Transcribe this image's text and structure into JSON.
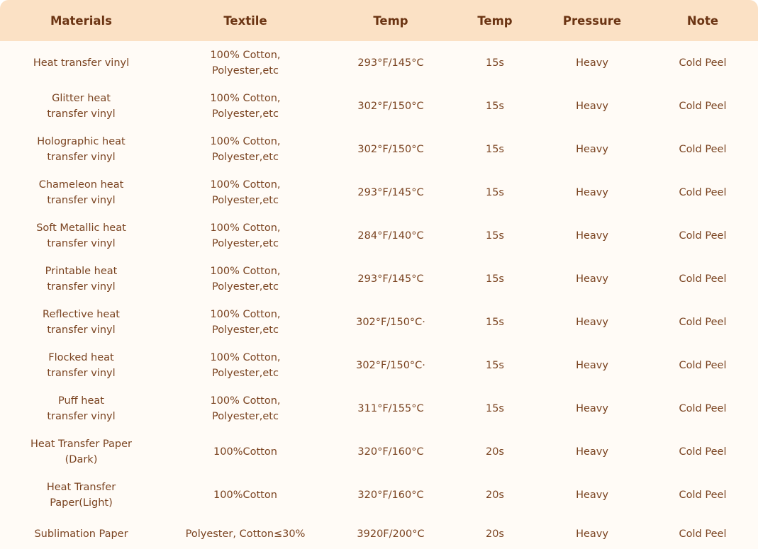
{
  "headers": [
    "Materials",
    "Textile",
    "Temp",
    "Temp",
    "Pressure",
    "Note"
  ],
  "rows": [
    {
      "material": "Heat transfer vinyl",
      "textile": "100% Cotton,\nPolyester,etc",
      "temp": "293°F/145°C",
      "time": "15s",
      "pressure": "Heavy",
      "note": "Cold Peel"
    },
    {
      "material": "Glitter heat\ntransfer vinyl",
      "textile": "100% Cotton,\nPolyester,etc",
      "temp": "302°F/150°C",
      "time": "15s",
      "pressure": "Heavy",
      "note": "Cold Peel"
    },
    {
      "material": "Holographic heat\ntransfer vinyl",
      "textile": "100% Cotton,\nPolyester,etc",
      "temp": "302°F/150°C",
      "time": "15s",
      "pressure": "Heavy",
      "note": "Cold Peel"
    },
    {
      "material": "Chameleon heat\ntransfer vinyl",
      "textile": "100% Cotton,\nPolyester,etc",
      "temp": "293°F/145°C",
      "time": "15s",
      "pressure": "Heavy",
      "note": "Cold Peel"
    },
    {
      "material": "Soft Metallic heat\ntransfer vinyl",
      "textile": "100% Cotton,\nPolyester,etc",
      "temp": "284°F/140°C",
      "time": "15s",
      "pressure": "Heavy",
      "note": "Cold Peel"
    },
    {
      "material": "Printable heat\ntransfer vinyl",
      "textile": "100% Cotton,\nPolyester,etc",
      "temp": "293°F/145°C",
      "time": "15s",
      "pressure": "Heavy",
      "note": "Cold Peel"
    },
    {
      "material": "Reflective heat\ntransfer vinyl",
      "textile": "100% Cotton,\nPolyester,etc",
      "temp": "302°F/150°C·",
      "time": "15s",
      "pressure": "Heavy",
      "note": "Cold Peel"
    },
    {
      "material": "Flocked heat\ntransfer vinyl",
      "textile": "100% Cotton,\nPolyester,etc",
      "temp": "302°F/150°C·",
      "time": "15s",
      "pressure": "Heavy",
      "note": "Cold Peel"
    },
    {
      "material": "Puff heat\ntransfer vinyl",
      "textile": "100% Cotton,\nPolyester,etc",
      "temp": "311°F/155°C",
      "time": "15s",
      "pressure": "Heavy",
      "note": "Cold Peel"
    },
    {
      "material": "Heat Transfer Paper\n(Dark)",
      "textile": "100%Cotton",
      "temp": "320°F/160°C",
      "time": "20s",
      "pressure": "Heavy",
      "note": "Cold Peel"
    },
    {
      "material": "Heat Transfer\nPaper(Light)",
      "textile": "100%Cotton",
      "temp": "320°F/160°C",
      "time": "20s",
      "pressure": "Heavy",
      "note": "Cold Peel"
    },
    {
      "material": "Sublimation Paper",
      "textile": "Polyester, Cotton≤30%",
      "temp": "3920F/200°C",
      "time": "20s",
      "pressure": "Heavy",
      "note": "Cold Peel"
    }
  ],
  "colors": {
    "header_bg": "#fbe1c5",
    "header_text": "#6b3413",
    "body_bg": "#fffbf6",
    "body_text": "#7a4320"
  }
}
